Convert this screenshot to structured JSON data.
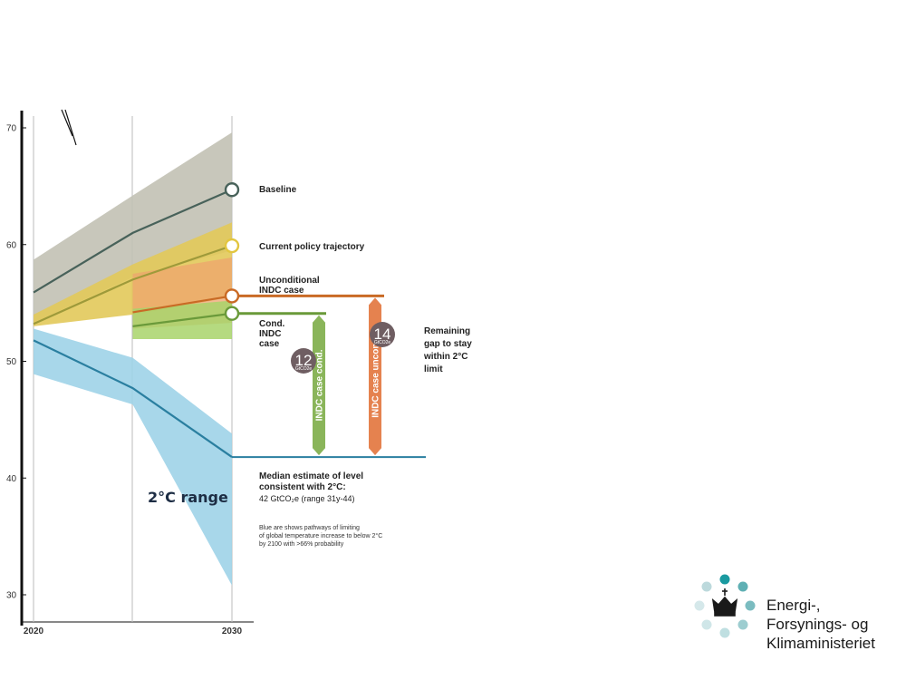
{
  "chart_data": {
    "type": "area",
    "x_ticks": [
      "2020",
      "2030"
    ],
    "y_ticks": [
      "30",
      "40",
      "50",
      "60",
      "70"
    ],
    "ylim": [
      29,
      71
    ],
    "xlim": [
      2020,
      2030
    ],
    "series": [
      {
        "key": "baseline",
        "name": "Baseline",
        "x": [
          2020,
          2025,
          2030
        ],
        "y": [
          55.9,
          61.0,
          64.7
        ],
        "band_low": [
          53.3,
          57.2,
          59.5
        ],
        "band_high": [
          58.7,
          64.2,
          69.6
        ],
        "color": "#48625a",
        "band_color": "#c2c1b4"
      },
      {
        "key": "current_policy",
        "name": "Current policy trajectory",
        "x": [
          2020,
          2025,
          2030
        ],
        "y": [
          53.2,
          57.0,
          59.9
        ],
        "band_low": [
          53.0,
          54.0,
          55.5
        ],
        "band_high": [
          54.0,
          58.3,
          61.9
        ],
        "color": "#9e9a3a",
        "band_color": "#e2c95a"
      },
      {
        "key": "unconditional_indc",
        "name": "Unconditional INDC case",
        "x": [
          2025,
          2030
        ],
        "y": [
          54.2,
          55.6
        ],
        "band_low": [
          52.8,
          53.3
        ],
        "band_high": [
          57.5,
          58.9
        ],
        "color": "#c96a25",
        "band_color": "#eea46e"
      },
      {
        "key": "conditional_indc",
        "name": "Cond. INDC case",
        "x": [
          2025,
          2030
        ],
        "y": [
          53.0,
          54.1
        ],
        "band_low": [
          51.9,
          51.9
        ],
        "band_high": [
          54.5,
          55.2
        ],
        "color": "#6a9a3a",
        "band_color": "#a8d46a"
      },
      {
        "key": "two_degree",
        "name": "2°C range",
        "x": [
          2020,
          2025,
          2030
        ],
        "y": [
          51.8,
          47.7,
          41.8
        ],
        "band_low": [
          48.9,
          46.3,
          30.8
        ],
        "band_high": [
          52.8,
          50.3,
          43.8
        ],
        "color": "#2a7fa0",
        "band_color": "#9fd3e8"
      }
    ],
    "gaps": [
      {
        "label": "INDC case cond.",
        "value": "12",
        "unit": "GtCO2e",
        "from": 54.1,
        "to": 41.8,
        "color": "#8ab55a"
      },
      {
        "label": "INDC case uncond.",
        "value": "14",
        "unit": "GtCO2e",
        "from": 55.6,
        "to": 41.8,
        "color": "#e5824f"
      }
    ],
    "labels": {
      "baseline": "Baseline",
      "current_policy": "Current policy trajectory",
      "uncond_1": "Unconditional",
      "uncond_2": "INDC case",
      "cond_1": "Cond.",
      "cond_2": "INDC",
      "cond_3": "case",
      "remaining_1": "Remaining",
      "remaining_2": "gap to stay",
      "remaining_3": "within 2°C",
      "remaining_4": "limit",
      "two_deg_range": "2°C range",
      "median_1": "Median estimate of level",
      "median_2": "consistent with 2°C:",
      "median_3": "42 GtCO₂e (range 31y-44)",
      "blue_1": "Blue are shows pathways of limiting",
      "blue_2": "of global temperature increase to below 2°C",
      "blue_3": "by 2100 with >66% probability"
    }
  },
  "logo": {
    "line1": "Energi-,",
    "line2": "Forsynings- og",
    "line3": "Klimaministeriet"
  }
}
